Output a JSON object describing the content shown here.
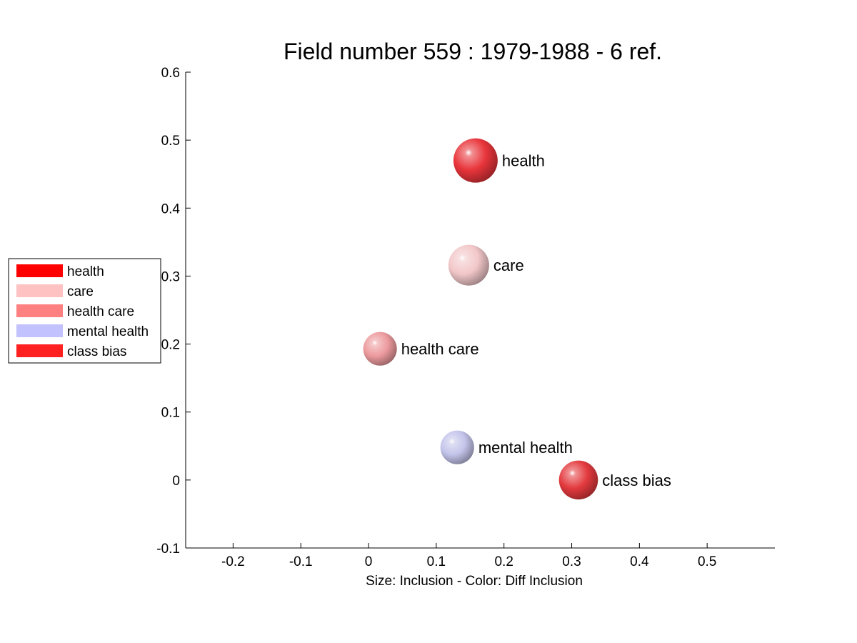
{
  "chart_data": {
    "type": "scatter",
    "title": "Field number 559 : 1979-1988  - 6 ref.",
    "xlabel": "Size: Inclusion - Color: Diff Inclusion",
    "ylabel": "",
    "xlim": [
      -0.27,
      0.6
    ],
    "ylim": [
      -0.1,
      0.6
    ],
    "xticks": [
      -0.2,
      -0.1,
      0,
      0.1,
      0.2,
      0.3,
      0.4,
      0.5
    ],
    "xtick_labels": [
      "-0.2",
      "-0.1",
      "0",
      "0.1",
      "0.2",
      "0.3",
      "0.4",
      "0.5"
    ],
    "yticks": [
      -0.1,
      0,
      0.1,
      0.2,
      0.3,
      0.4,
      0.5,
      0.6
    ],
    "ytick_labels": [
      "-0.1",
      "0",
      "0.1",
      "0.2",
      "0.3",
      "0.4",
      "0.5",
      "0.6"
    ],
    "grid": false,
    "legend_position": "left",
    "points": [
      {
        "label": "health",
        "x": 0.158,
        "y": 0.47,
        "size": 1.0,
        "color": "#e8353b"
      },
      {
        "label": "care",
        "x": 0.148,
        "y": 0.316,
        "size": 0.92,
        "color": "#f2c7c9"
      },
      {
        "label": "health care",
        "x": 0.017,
        "y": 0.193,
        "size": 0.76,
        "color": "#ec9a9d"
      },
      {
        "label": "mental health",
        "x": 0.131,
        "y": 0.048,
        "size": 0.76,
        "color": "#c3c4ea"
      },
      {
        "label": "class bias",
        "x": 0.31,
        "y": 0.0,
        "size": 0.88,
        "color": "#e33a3e"
      }
    ],
    "legend": [
      {
        "label": "health",
        "color": "#ff0000"
      },
      {
        "label": "care",
        "color": "#ffc2c2"
      },
      {
        "label": "health care",
        "color": "#ff8080"
      },
      {
        "label": "mental health",
        "color": "#c2c2ff"
      },
      {
        "label": "class bias",
        "color": "#ff2020"
      }
    ]
  }
}
